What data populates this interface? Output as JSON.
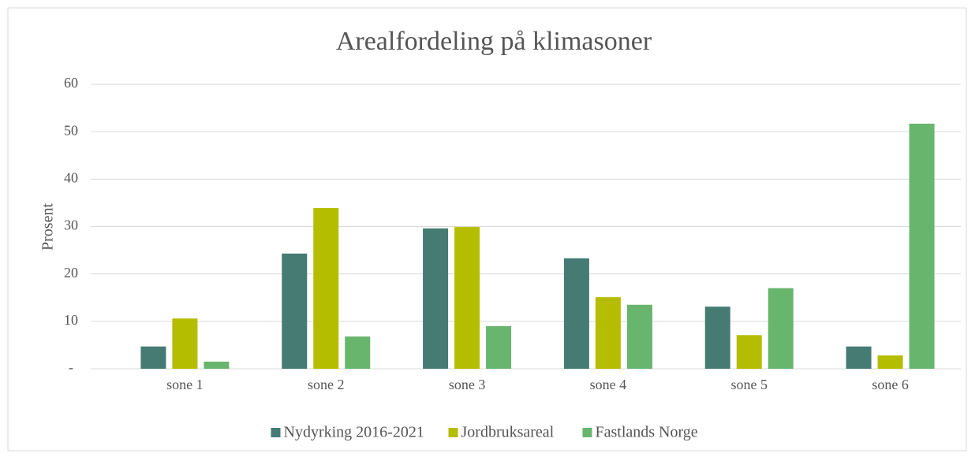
{
  "chart_data": {
    "type": "bar",
    "title": "Arealfordeling på klimasoner",
    "y_label": "Prosent",
    "categories": [
      "sone 1",
      "sone 2",
      "sone 3",
      "sone 4",
      "sone 5",
      "sone 6"
    ],
    "series": [
      {
        "name": "Nydyrking 2016-2021",
        "color": "#457b72",
        "values": [
          4.7,
          24.3,
          29.6,
          23.3,
          13.1,
          4.7
        ]
      },
      {
        "name": "Jordbruksareal",
        "color": "#b5bd00",
        "values": [
          10.6,
          33.9,
          29.9,
          15.1,
          7.1,
          2.8
        ]
      },
      {
        "name": "Fastlands Norge",
        "color": "#68b56e",
        "values": [
          1.5,
          6.8,
          9.0,
          13.5,
          17.0,
          51.7
        ]
      }
    ],
    "ylim": [
      0,
      60
    ],
    "yticks": [
      {
        "value": 0,
        "label": "-"
      },
      10,
      20,
      30,
      40,
      50,
      60
    ],
    "grid": true,
    "legend": "bottom"
  }
}
